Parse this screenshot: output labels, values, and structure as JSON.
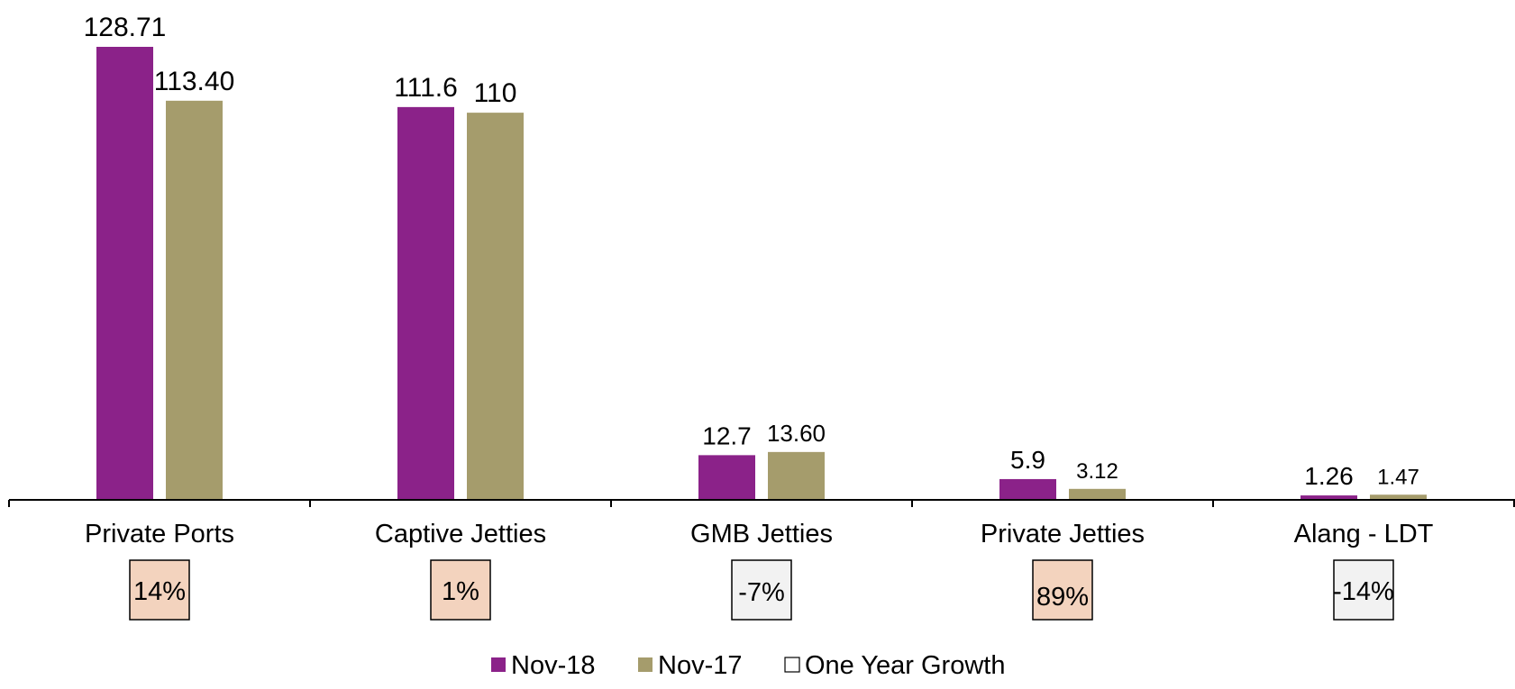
{
  "chart_data": {
    "type": "bar",
    "categories": [
      "Private Ports",
      "Captive Jetties",
      "GMB Jetties",
      "Private Jetties",
      "Alang - LDT"
    ],
    "series": [
      {
        "name": "Nov-18",
        "color": "#8B2289",
        "values": [
          128.71,
          111.6,
          12.7,
          5.9,
          1.26
        ],
        "labels": [
          "128.71",
          "111.6",
          "12.7",
          "5.9",
          "1.26"
        ]
      },
      {
        "name": "Nov-17",
        "color": "#A59C6C",
        "values": [
          113.4,
          110,
          13.6,
          3.12,
          1.47
        ],
        "labels": [
          "113.40",
          "110",
          "13.60",
          "3.12",
          "1.47"
        ]
      }
    ],
    "growth": {
      "name": "One Year Growth",
      "values": [
        "14%",
        "1%",
        "-7%",
        "89%",
        "-14%"
      ],
      "colors": [
        "#F3D3BE",
        "#F3D3BE",
        "#F2F2F2",
        "#F3D3BE",
        "#F2F2F2"
      ]
    },
    "legend_position": "bottom",
    "grid": false
  }
}
